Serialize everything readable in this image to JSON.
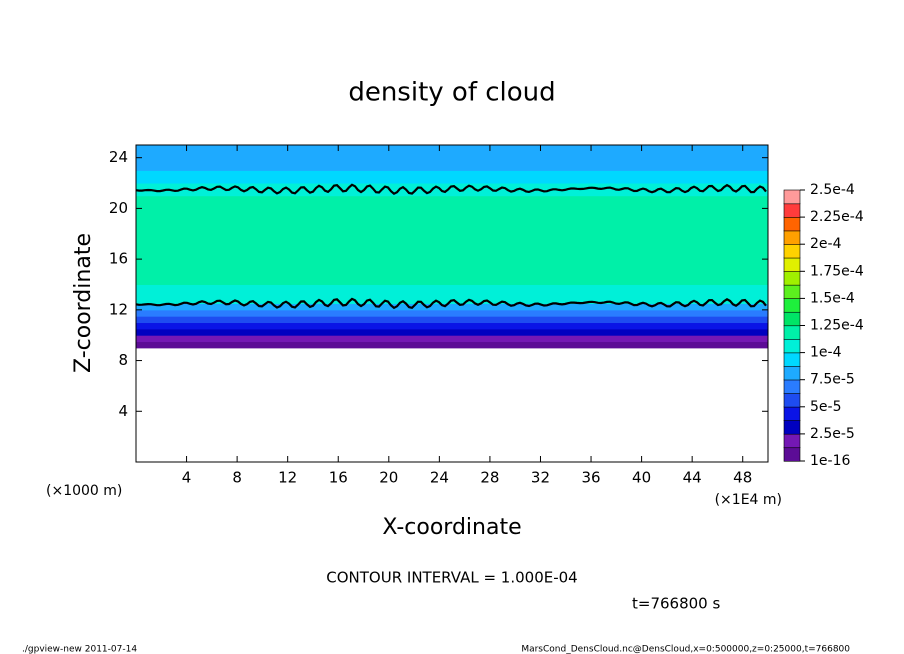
{
  "chart_data": {
    "type": "heatmap",
    "title": "density of cloud",
    "xlabel": "X-coordinate",
    "ylabel": "Z-coordinate",
    "x_unit": "(×1E4 m)",
    "y_unit": "(×1000 m)",
    "xlim": [
      0,
      50
    ],
    "xticks": [
      4,
      8,
      12,
      16,
      20,
      24,
      28,
      32,
      36,
      40,
      44,
      48
    ],
    "ylim": [
      0,
      25
    ],
    "yticks": [
      4,
      8,
      12,
      16,
      20,
      24
    ],
    "z": [
      9,
      9.5,
      10,
      10.5,
      11,
      11.5,
      12,
      12.5,
      13,
      14,
      16,
      18,
      20,
      21,
      21.5,
      22,
      23,
      24,
      25
    ],
    "values": [
      1e-05,
      2e-05,
      3.5e-05,
      4.5e-05,
      5.5e-05,
      6.5e-05,
      8e-05,
      0.0001,
      0.00011,
      0.000115,
      0.00012,
      0.00012,
      0.000115,
      0.000105,
      0.0001,
      9e-05,
      8e-05,
      7.5e-05,
      7e-05
    ],
    "colorbar": {
      "lim": [
        0,
        0.00025
      ],
      "ticks": [
        {
          "value": 1e-16,
          "label": "1e-16"
        },
        {
          "value": 2.5e-05,
          "label": "2.5e-5"
        },
        {
          "value": 5e-05,
          "label": "5e-5"
        },
        {
          "value": 7.5e-05,
          "label": "7.5e-5"
        },
        {
          "value": 0.0001,
          "label": "1e-4"
        },
        {
          "value": 0.000125,
          "label": "1.25e-4"
        },
        {
          "value": 0.00015,
          "label": "1.5e-4"
        },
        {
          "value": 0.000175,
          "label": "1.75e-4"
        },
        {
          "value": 0.0002,
          "label": "2e-4"
        },
        {
          "value": 0.000225,
          "label": "2.25e-4"
        },
        {
          "value": 0.00025,
          "label": "2.5e-4"
        }
      ],
      "colors": [
        "#5c0c96",
        "#7418b4",
        "#0000c0",
        "#0a14e6",
        "#1e4cf0",
        "#2a7cff",
        "#1eaaff",
        "#00d8ff",
        "#00f0d8",
        "#00f0a8",
        "#00e466",
        "#1ef03c",
        "#5cf01e",
        "#a0f000",
        "#e0f000",
        "#ffd200",
        "#ffa000",
        "#ff6400",
        "#ff3c3c",
        "#ff9a9a"
      ]
    },
    "contour_interval": {
      "value": 0.0001,
      "label": "CONTOUR INTERVAL = 1.000E-04"
    },
    "time_label": "t=766800 s",
    "footer_left": "./gpview-new  2011-07-14",
    "footer_right": "MarsCond_DensCloud.nc@DensCloud,x=0:500000,z=0:25000,t=766800"
  }
}
